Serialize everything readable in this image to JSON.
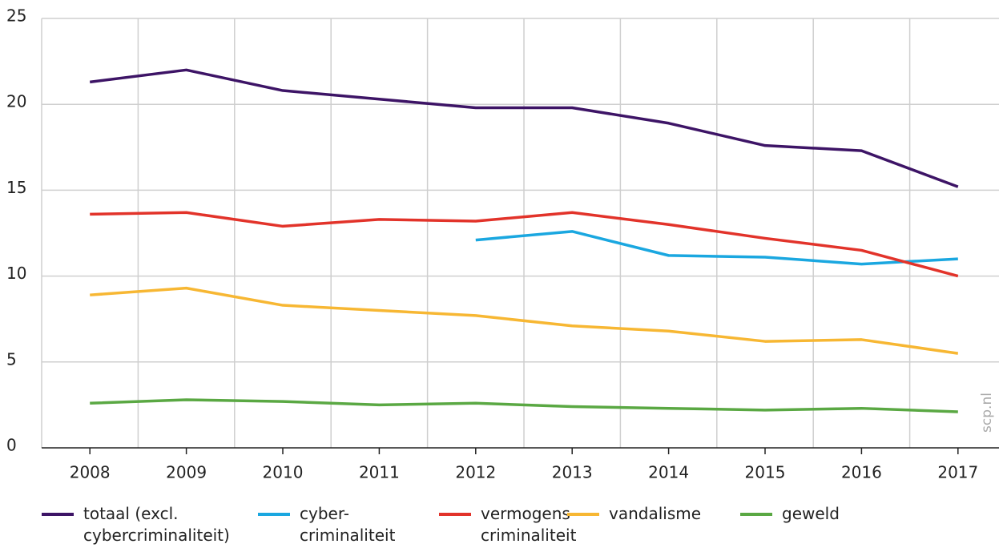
{
  "chart_data": {
    "type": "line",
    "categories": [
      "2008",
      "2009",
      "2010",
      "2011",
      "2012",
      "2013",
      "2014",
      "2015",
      "2016",
      "2017"
    ],
    "series": [
      {
        "name": "totaal (excl.\ncybercriminaliteit)",
        "color": "#3d1466",
        "values": [
          21.3,
          22.0,
          20.8,
          20.3,
          19.8,
          19.8,
          18.9,
          17.6,
          17.3,
          15.2
        ]
      },
      {
        "name": "cyber-\ncriminaliteit",
        "color": "#1aa7e0",
        "values": [
          null,
          null,
          null,
          null,
          12.1,
          12.6,
          11.2,
          11.1,
          10.7,
          11.0
        ]
      },
      {
        "name": "vermogens-\ncriminaliteit",
        "color": "#e2332a",
        "values": [
          13.6,
          13.7,
          12.9,
          13.3,
          13.2,
          13.7,
          13.0,
          12.2,
          11.5,
          10.0
        ]
      },
      {
        "name": "vandalisme",
        "color": "#f7b733",
        "values": [
          8.9,
          9.3,
          8.3,
          8.0,
          7.7,
          7.1,
          6.8,
          6.2,
          6.3,
          5.5
        ]
      },
      {
        "name": "geweld",
        "color": "#5aa843",
        "values": [
          2.6,
          2.8,
          2.7,
          2.5,
          2.6,
          2.4,
          2.3,
          2.2,
          2.3,
          2.1
        ]
      }
    ],
    "ylim": [
      0,
      25
    ],
    "yticks": [
      0,
      5,
      10,
      15,
      20,
      25
    ],
    "grid": true,
    "legend": "bottom",
    "watermark": "scp.nl"
  }
}
